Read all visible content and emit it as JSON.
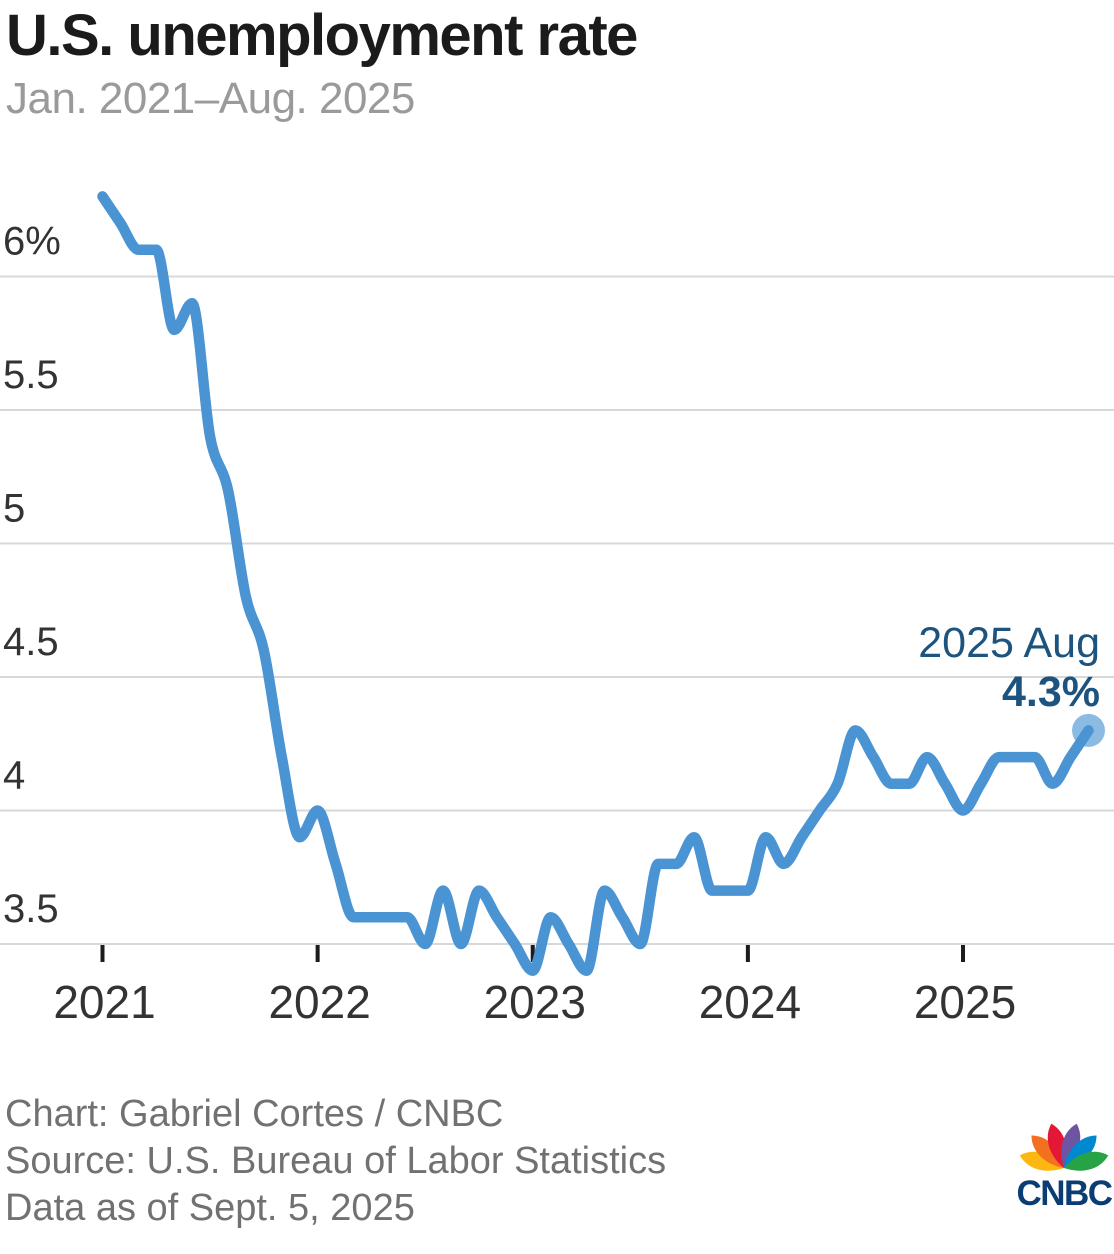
{
  "header": {
    "title": "U.S. unemployment rate",
    "subtitle": "Jan. 2021–Aug. 2025"
  },
  "chart_data": {
    "type": "line",
    "series_name": "U.S. unemployment rate",
    "unit": "percent",
    "x_start": "2021-01",
    "x_end": "2025-08",
    "monthly_values": [
      6.3,
      6.2,
      6.1,
      6.1,
      5.8,
      5.9,
      5.4,
      5.2,
      4.8,
      4.6,
      4.2,
      3.9,
      4.0,
      3.8,
      3.6,
      3.6,
      3.6,
      3.6,
      3.5,
      3.7,
      3.5,
      3.7,
      3.6,
      3.5,
      3.4,
      3.6,
      3.5,
      3.4,
      3.7,
      3.6,
      3.5,
      3.8,
      3.8,
      3.9,
      3.7,
      3.7,
      3.7,
      3.9,
      3.8,
      3.9,
      4.0,
      4.1,
      4.3,
      4.2,
      4.1,
      4.1,
      4.2,
      4.1,
      4.0,
      4.1,
      4.2,
      4.2,
      4.2,
      4.1,
      4.2,
      4.3
    ],
    "y_axis": {
      "tick_values": [
        6,
        5.5,
        5,
        4.5,
        4,
        3.5
      ],
      "tick_labels": [
        "6%",
        "5.5",
        "5",
        "4.5",
        "4",
        "3.5"
      ],
      "range": [
        3.3,
        6.45
      ]
    },
    "x_axis": {
      "tick_labels": [
        "2021",
        "2022",
        "2023",
        "2024",
        "2025"
      ],
      "tick_month_indices": [
        0,
        12,
        24,
        36,
        48
      ]
    },
    "grid": "horizontal",
    "legend": "none",
    "annotation": {
      "date_label": "2025 Aug",
      "value_label": "4.3%"
    },
    "colors": {
      "line": "#4A94D4",
      "end_dot": "#8BBAE3",
      "annotation_text": "#1D547F",
      "gridline": "#D8D8D8",
      "axis_label": "#333333",
      "tick": "#1C1C1C"
    }
  },
  "footer": {
    "credit": "Chart: Gabriel Cortes / CNBC",
    "source": "Source: U.S. Bureau of Labor Statistics",
    "as_of": "Data as of Sept. 5, 2025"
  },
  "logo": {
    "text": "CNBC",
    "wordmark_color": "#0A3D73",
    "feather_colors": [
      "#FCB711",
      "#F37021",
      "#E31837",
      "#6E55A3",
      "#0089CF",
      "#27A244"
    ]
  }
}
